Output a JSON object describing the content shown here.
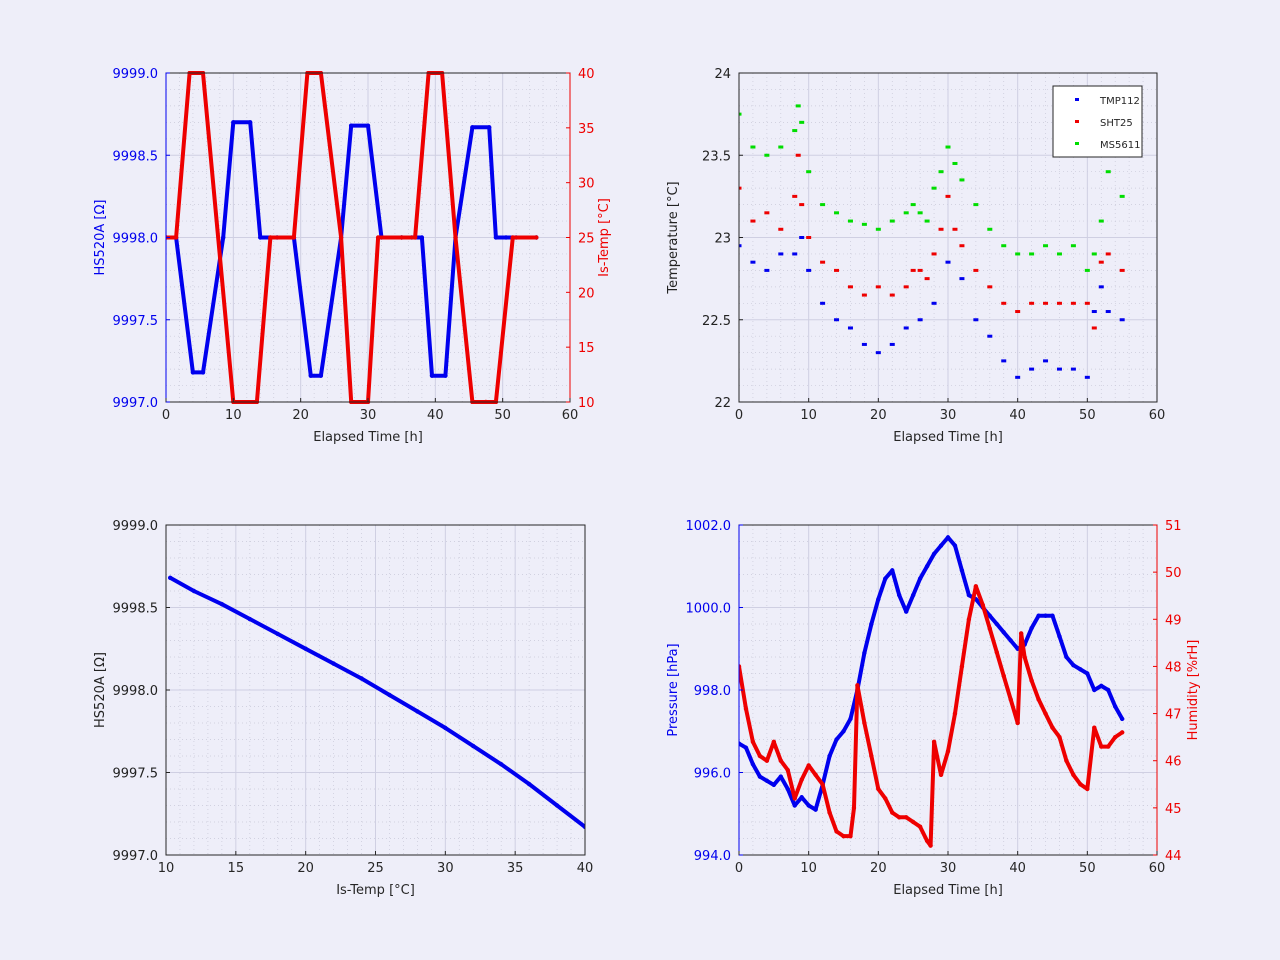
{
  "chart_data": [
    {
      "id": "p1",
      "type": "line",
      "xlabel": "Elapsed Time [h]",
      "ylabel": "HS520A [Ω]",
      "y2label": "Is-Temp [°C]",
      "xlim": [
        0,
        60
      ],
      "ylim": [
        9997.0,
        9999.0
      ],
      "y2lim": [
        10,
        40
      ],
      "xticks": [
        "0",
        "10",
        "20",
        "30",
        "40",
        "50",
        "60"
      ],
      "yticks": [
        "9997.0",
        "9997.5",
        "9998.0",
        "9998.5",
        "9999.0"
      ],
      "y2ticks": [
        "10",
        "15",
        "20",
        "25",
        "30",
        "35",
        "40"
      ],
      "grid": true,
      "series": [
        {
          "axis": "left",
          "color": "#0000ee",
          "x": [
            0,
            1.5,
            4,
            5.5,
            8.5,
            10,
            12.5,
            14,
            16.5,
            19,
            21.5,
            23,
            26,
            27.5,
            30,
            32,
            35,
            36.5,
            38,
            39.5,
            41.5,
            43,
            45.5,
            48,
            49,
            50.5,
            52,
            55
          ],
          "y": [
            9998.0,
            9998.0,
            9997.18,
            9997.18,
            9998.0,
            9998.7,
            9998.7,
            9998.0,
            9998.0,
            9998.0,
            9997.16,
            9997.16,
            9998.0,
            9998.68,
            9998.68,
            9998.0,
            9998.0,
            9998.0,
            9998.0,
            9997.16,
            9997.16,
            9998.0,
            9998.67,
            9998.67,
            9998.0,
            9998.0,
            9998.0,
            9998.0
          ]
        },
        {
          "axis": "right",
          "color": "#ee0000",
          "x": [
            0,
            1.5,
            3.5,
            5.5,
            10,
            13.5,
            15.5,
            19,
            21,
            23,
            26,
            27.5,
            30,
            31.5,
            35,
            37,
            39,
            41,
            43,
            45.5,
            47.5,
            49,
            51.5,
            55
          ],
          "y": [
            25,
            25,
            40,
            40,
            10,
            10,
            25,
            25,
            40,
            40,
            25,
            10,
            10,
            25,
            25,
            25,
            40,
            40,
            25,
            10,
            10,
            10,
            25,
            25
          ]
        }
      ]
    },
    {
      "id": "p2",
      "type": "scatter",
      "xlabel": "Elapsed Time [h]",
      "ylabel": "Temperature [°C]",
      "xlim": [
        0,
        60
      ],
      "ylim": [
        22,
        24
      ],
      "xticks": [
        "0",
        "10",
        "20",
        "30",
        "40",
        "50",
        "60"
      ],
      "yticks": [
        "22",
        "22.5",
        "23",
        "23.5",
        "24"
      ],
      "grid": true,
      "legend": "top-right",
      "series": [
        {
          "name": "TMP112",
          "color": "#0000ee",
          "x": [
            0,
            2,
            4,
            6,
            8,
            9,
            10,
            12,
            14,
            16,
            18,
            20,
            22,
            24,
            26,
            28,
            30,
            32,
            34,
            36,
            38,
            40,
            42,
            44,
            46,
            48,
            50,
            51,
            52,
            53,
            55
          ],
          "y": [
            22.95,
            22.85,
            22.8,
            22.9,
            22.9,
            23.0,
            22.8,
            22.6,
            22.5,
            22.45,
            22.35,
            22.3,
            22.35,
            22.45,
            22.5,
            22.6,
            22.85,
            22.75,
            22.5,
            22.4,
            22.25,
            22.15,
            22.2,
            22.25,
            22.2,
            22.2,
            22.15,
            22.55,
            22.7,
            22.55,
            22.5
          ]
        },
        {
          "name": "SHT25",
          "color": "#ee0000",
          "x": [
            0,
            2,
            4,
            6,
            8,
            8.5,
            9,
            10,
            12,
            14,
            16,
            18,
            20,
            22,
            24,
            25,
            26,
            27,
            28,
            29,
            30,
            31,
            32,
            34,
            36,
            38,
            40,
            42,
            44,
            46,
            48,
            50,
            51,
            52,
            53,
            55
          ],
          "y": [
            23.3,
            23.1,
            23.15,
            23.05,
            23.25,
            23.5,
            23.2,
            23.0,
            22.85,
            22.8,
            22.7,
            22.65,
            22.7,
            22.65,
            22.7,
            22.8,
            22.8,
            22.75,
            22.9,
            23.05,
            23.25,
            23.05,
            22.95,
            22.8,
            22.7,
            22.6,
            22.55,
            22.6,
            22.6,
            22.6,
            22.6,
            22.6,
            22.45,
            22.85,
            22.9,
            22.8
          ]
        },
        {
          "name": "MS5611",
          "color": "#00dd00",
          "x": [
            0,
            2,
            4,
            6,
            8,
            8.5,
            9,
            10,
            12,
            14,
            16,
            18,
            20,
            22,
            24,
            25,
            26,
            27,
            28,
            29,
            30,
            31,
            32,
            34,
            36,
            38,
            40,
            42,
            44,
            46,
            48,
            50,
            51,
            52,
            53,
            55
          ],
          "y": [
            23.75,
            23.55,
            23.5,
            23.55,
            23.65,
            23.8,
            23.7,
            23.4,
            23.2,
            23.15,
            23.1,
            23.08,
            23.05,
            23.1,
            23.15,
            23.2,
            23.15,
            23.1,
            23.3,
            23.4,
            23.55,
            23.45,
            23.35,
            23.2,
            23.05,
            22.95,
            22.9,
            22.9,
            22.95,
            22.9,
            22.95,
            22.8,
            22.9,
            23.1,
            23.4,
            23.25
          ]
        }
      ]
    },
    {
      "id": "p3",
      "type": "line",
      "xlabel": "Is-Temp [°C]",
      "ylabel": "HS520A [Ω]",
      "xlim": [
        10,
        40
      ],
      "ylim": [
        9997.0,
        9999.0
      ],
      "xticks": [
        "10",
        "15",
        "20",
        "25",
        "30",
        "35",
        "40"
      ],
      "yticks": [
        "9997.0",
        "9997.5",
        "9998.0",
        "9998.5",
        "9999.0"
      ],
      "grid": true,
      "series": [
        {
          "color": "#0000ee",
          "x": [
            10.3,
            12,
            14,
            16,
            18,
            20,
            22,
            24,
            26,
            28,
            30,
            32,
            34,
            36,
            38,
            40
          ],
          "y": [
            9998.68,
            9998.6,
            9998.52,
            9998.43,
            9998.34,
            9998.25,
            9998.16,
            9998.07,
            9997.97,
            9997.87,
            9997.77,
            9997.66,
            9997.55,
            9997.43,
            9997.3,
            9997.17
          ]
        }
      ]
    },
    {
      "id": "p4",
      "type": "line",
      "xlabel": "Elapsed Time [h]",
      "ylabel": "Pressure [hPa]",
      "y2label": "Humidity [%rH]",
      "xlim": [
        0,
        60
      ],
      "ylim": [
        994.0,
        1002.0
      ],
      "y2lim": [
        44,
        51
      ],
      "xticks": [
        "0",
        "10",
        "20",
        "30",
        "40",
        "50",
        "60"
      ],
      "yticks": [
        "994.0",
        "996.0",
        "998.0",
        "1000.0",
        "1002.0"
      ],
      "y2ticks": [
        "44",
        "45",
        "46",
        "47",
        "48",
        "49",
        "50",
        "51"
      ],
      "grid": true,
      "series": [
        {
          "axis": "left",
          "color": "#0000ee",
          "x": [
            0,
            1,
            2,
            3,
            4,
            5,
            6,
            7,
            8,
            9,
            10,
            11,
            12,
            13,
            14,
            15,
            16,
            17,
            18,
            19,
            20,
            21,
            22,
            23,
            24,
            25,
            26,
            27,
            28,
            29,
            30,
            31,
            32,
            33,
            34,
            35,
            36,
            37,
            38,
            39,
            40,
            41,
            42,
            43,
            44,
            45,
            46,
            47,
            48,
            49,
            50,
            51,
            52,
            53,
            54,
            55
          ],
          "y": [
            996.7,
            996.6,
            996.2,
            995.9,
            995.8,
            995.7,
            995.9,
            995.6,
            995.2,
            995.4,
            995.2,
            995.1,
            995.7,
            996.4,
            996.8,
            997.0,
            997.3,
            998.0,
            998.9,
            999.6,
            1000.2,
            1000.7,
            1000.9,
            1000.3,
            999.9,
            1000.3,
            1000.7,
            1001.0,
            1001.3,
            1001.5,
            1001.7,
            1001.5,
            1000.9,
            1000.3,
            1000.2,
            1000.0,
            999.8,
            999.6,
            999.4,
            999.2,
            999.0,
            999.1,
            999.5,
            999.8,
            999.8,
            999.8,
            999.3,
            998.8,
            998.6,
            998.5,
            998.4,
            998.0,
            998.1,
            998.0,
            997.6,
            997.3
          ]
        },
        {
          "axis": "right",
          "color": "#ee0000",
          "x": [
            0,
            1,
            2,
            3,
            4,
            5,
            6,
            7,
            8,
            9,
            10,
            11,
            12,
            13,
            14,
            15,
            16,
            16.5,
            17,
            18,
            19,
            20,
            21,
            22,
            23,
            24,
            25,
            26,
            27,
            27.5,
            28,
            29,
            30,
            31,
            32,
            33,
            34,
            35,
            36,
            37,
            38,
            39,
            40,
            40.5,
            41,
            42,
            43,
            44,
            45,
            46,
            47,
            48,
            49,
            50,
            51,
            52,
            53,
            54,
            55
          ],
          "y": [
            48.0,
            47.1,
            46.4,
            46.1,
            46.0,
            46.4,
            46.0,
            45.8,
            45.2,
            45.6,
            45.9,
            45.7,
            45.5,
            44.9,
            44.5,
            44.4,
            44.4,
            45.0,
            47.6,
            46.8,
            46.1,
            45.4,
            45.2,
            44.9,
            44.8,
            44.8,
            44.7,
            44.6,
            44.3,
            44.2,
            46.4,
            45.7,
            46.2,
            47.0,
            48.0,
            49.0,
            49.7,
            49.3,
            48.8,
            48.3,
            47.8,
            47.3,
            46.8,
            48.7,
            48.2,
            47.7,
            47.3,
            47.0,
            46.7,
            46.5,
            46.0,
            45.7,
            45.5,
            45.4,
            46.7,
            46.3,
            46.3,
            46.5,
            46.6
          ]
        }
      ]
    }
  ]
}
